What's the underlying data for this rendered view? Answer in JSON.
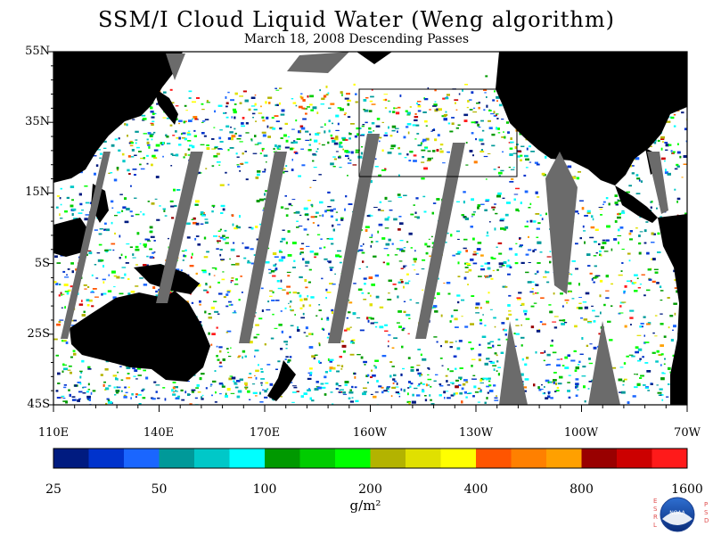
{
  "title": "SSM/I Cloud Liquid Water (Weng algorithm)",
  "subtitle": "March 18, 2008  Descending Passes",
  "lat_labels": [
    "55N",
    "35N",
    "15N",
    "5S",
    "25S",
    "45S"
  ],
  "lon_labels": [
    "110E",
    "140E",
    "170E",
    "160W",
    "130W",
    "100W",
    "70W"
  ],
  "colorbar": {
    "colors": [
      "#001b80",
      "#0033cc",
      "#1a66ff",
      "#009999",
      "#00c8c8",
      "#00ffff",
      "#009900",
      "#00cc00",
      "#00ff00",
      "#b3b300",
      "#e0e000",
      "#ffff00",
      "#ff5500",
      "#ff8000",
      "#ffa000",
      "#990000",
      "#cc0000",
      "#ff1a1a"
    ],
    "tick_labels": [
      "25",
      "50",
      "100",
      "200",
      "400",
      "800",
      "1600"
    ],
    "units": "g/m²"
  },
  "logo": {
    "left_letters": "ESRL",
    "right_letters": "PSD",
    "badge_text": "NOAA"
  }
}
